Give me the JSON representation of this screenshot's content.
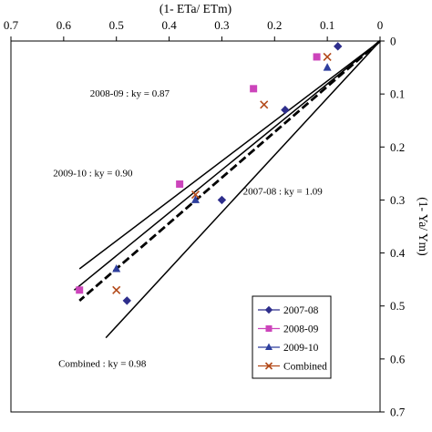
{
  "chart_data": {
    "type": "scatter",
    "xlabel": "(1- ETa/ ETm)",
    "ylabel": "(1- Ya/ Ym)",
    "xlim": [
      0.7,
      0
    ],
    "ylim": [
      0.7,
      0
    ],
    "x_axis_position": "top",
    "y_axis_position": "right",
    "x_reversed": true,
    "y_reversed": true,
    "x_ticks": [
      "0.7",
      "0.6",
      "0.5",
      "0.4",
      "0.3",
      "0.2",
      "0.1",
      "0"
    ],
    "y_ticks": [
      "0",
      "0.1",
      "0.2",
      "0.3",
      "0.4",
      "0.5",
      "0.6",
      "0.7"
    ],
    "grid": false,
    "legend_position": "bottom-right",
    "series": [
      {
        "name": "2007-08",
        "marker": "diamond",
        "color": "#2e2e8c",
        "points": [
          [
            0.08,
            0.01
          ],
          [
            0.18,
            0.13
          ],
          [
            0.3,
            0.3
          ],
          [
            0.48,
            0.49
          ]
        ]
      },
      {
        "name": "2008-09",
        "marker": "square",
        "color": "#cc44bb",
        "points": [
          [
            0.12,
            0.03
          ],
          [
            0.24,
            0.09
          ],
          [
            0.38,
            0.27
          ],
          [
            0.57,
            0.47
          ]
        ]
      },
      {
        "name": "2009-10",
        "marker": "triangle",
        "color": "#2e3f9e",
        "points": [
          [
            0.1,
            0.05
          ],
          [
            0.35,
            0.3
          ],
          [
            0.5,
            0.43
          ]
        ]
      },
      {
        "name": "Combined",
        "marker": "x",
        "color": "#b34a1a",
        "points": [
          [
            0.1,
            0.03
          ],
          [
            0.22,
            0.12
          ],
          [
            0.35,
            0.29
          ],
          [
            0.5,
            0.47
          ]
        ]
      }
    ],
    "fit_lines": [
      {
        "label": "2008-09 : ky = 0.87",
        "x_end": 0.57,
        "y_end": 0.43,
        "style": "solid"
      },
      {
        "label": "2009-10 : ky = 0.90",
        "x_end": 0.58,
        "y_end": 0.47,
        "style": "solid"
      },
      {
        "label": "Combined : ky = 0.98",
        "x_end": 0.57,
        "y_end": 0.49,
        "style": "dashed"
      },
      {
        "label": "2007-08 : ky = 1.09",
        "x_end": 0.52,
        "y_end": 0.56,
        "style": "solid"
      }
    ]
  }
}
